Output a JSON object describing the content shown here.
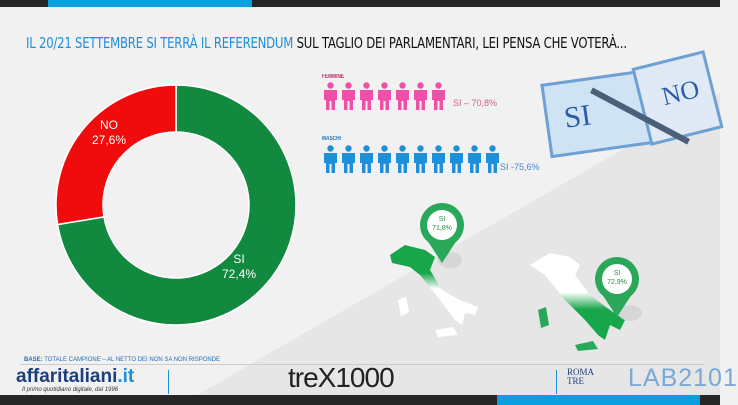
{
  "title": {
    "part1": "IL 20/21 SETTEMBRE SI TERRÀ IL REFERENDUM",
    "part2": "SUL TAGLIO DEI PARLAMENTARI, LEI PENSA CHE VOTERÀ..."
  },
  "chart_data": {
    "type": "pie",
    "title": "IL 20/21 SETTEMBRE SI TERRÀ IL REFERENDUM SUL TAGLIO DEI PARLAMENTARI, LEI PENSA CHE VOTERÀ...",
    "categories": [
      "SI",
      "NO"
    ],
    "values": [
      72.4,
      27.6
    ],
    "labels": [
      "72,4%",
      "27,6%"
    ],
    "colors": [
      "#118a3f",
      "#f00c0c"
    ],
    "donut": true
  },
  "gender": {
    "female": {
      "label": "FEMMINE",
      "value": "SI – 70,8%",
      "icons": 7,
      "color": "#ee4fa8"
    },
    "male": {
      "label": "MASCHI",
      "value": "SI -75,6%",
      "icons": 10,
      "color": "#1e8fd8"
    }
  },
  "regions": [
    {
      "name": "SI",
      "value": "71,8%"
    },
    {
      "name": "SI",
      "value": "72,9%"
    }
  ],
  "ballot": {
    "yes": "SI",
    "no": "NO"
  },
  "base": {
    "bold": "BASE:",
    "text": "TOTALE CAMPIONE – AL NETTO DEI NON SA NON RISPONDE"
  },
  "footer": {
    "logo_main": "affaritaliani",
    "logo_tld": ".it",
    "tagline": "Il primo quotidiano digitale, dal 1996",
    "trex": "treX1000",
    "roma1": "ROMA",
    "roma2": "TRE",
    "lab": "LAB2101"
  }
}
